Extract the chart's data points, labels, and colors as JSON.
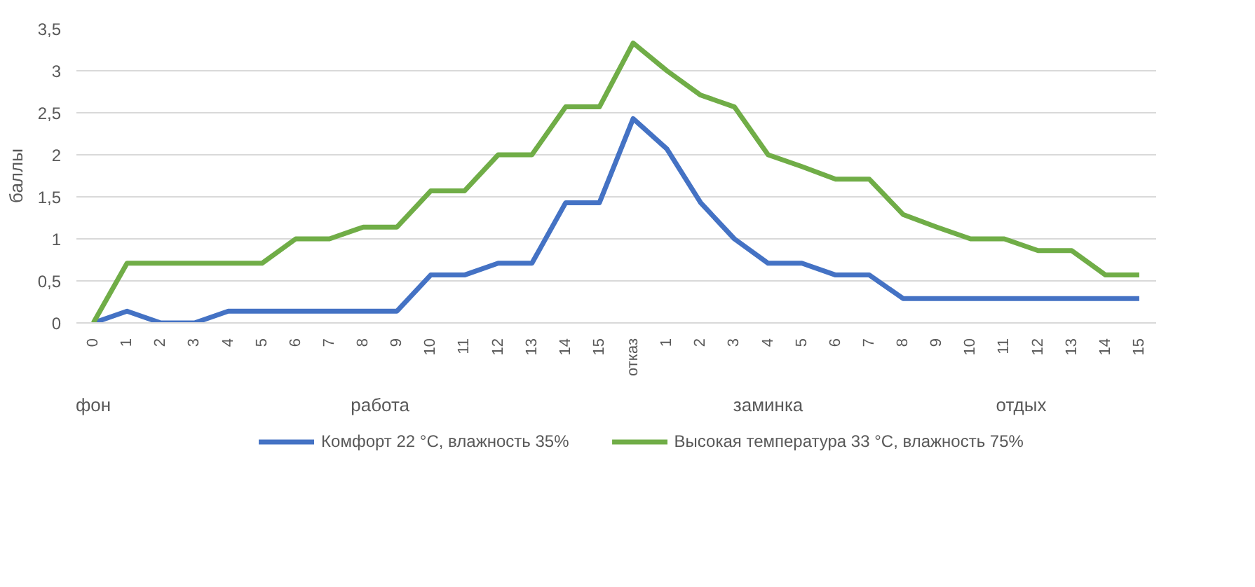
{
  "chart_data": {
    "type": "line",
    "ylabel": "баллы",
    "categories": [
      "0",
      "1",
      "2",
      "3",
      "4",
      "5",
      "6",
      "7",
      "8",
      "9",
      "10",
      "11",
      "12",
      "13",
      "14",
      "15",
      "отказ",
      "1",
      "2",
      "3",
      "4",
      "5",
      "6",
      "7",
      "8",
      "9",
      "10",
      "11",
      "12",
      "13",
      "14",
      "15"
    ],
    "series": [
      {
        "name": "Комфорт 22 °С, влажность 35%",
        "color": "#4472c4",
        "values": [
          0,
          0.14,
          0,
          0,
          0.14,
          0.14,
          0.14,
          0.14,
          0.14,
          0.14,
          0.57,
          0.57,
          0.71,
          0.71,
          1.43,
          1.43,
          2.43,
          2.07,
          1.43,
          1.0,
          0.71,
          0.71,
          0.57,
          0.57,
          0.29,
          0.29,
          0.29,
          0.29,
          0.29,
          0.29,
          0.29,
          0.29
        ]
      },
      {
        "name": "Высокая температура 33 °С, влажность 75%",
        "color": "#70ad47",
        "values": [
          0,
          0.71,
          0.71,
          0.71,
          0.71,
          0.71,
          1.0,
          1.0,
          1.14,
          1.14,
          1.57,
          1.57,
          2.0,
          2.0,
          2.57,
          2.57,
          3.33,
          3.0,
          2.71,
          2.57,
          2.0,
          1.86,
          1.71,
          1.71,
          1.29,
          1.14,
          1.0,
          1.0,
          0.86,
          0.86,
          0.57,
          0.57
        ]
      }
    ],
    "annotations": [
      "фон",
      "работа",
      "заминка",
      "отдых"
    ],
    "ylim": [
      0,
      3.5
    ],
    "yticks": [
      0,
      {
        "value": 0.5,
        "label": "0,5"
      },
      1,
      {
        "value": 1.5,
        "label": "1,5"
      },
      2,
      {
        "value": 2.5,
        "label": "2,5"
      },
      3,
      {
        "value": 3.5,
        "label": "3,5"
      }
    ],
    "grid": "y",
    "legend": "bottom",
    "line_style": "solid"
  }
}
